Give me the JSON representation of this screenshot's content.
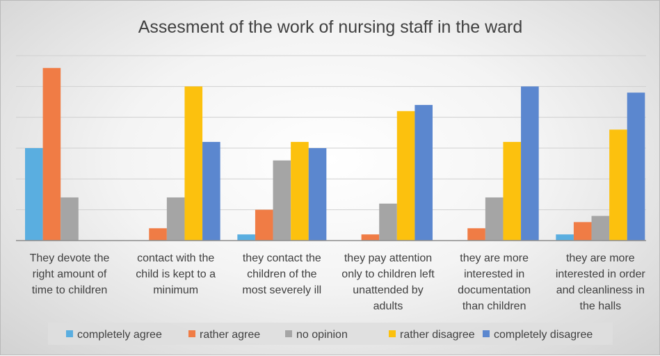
{
  "chart_data": {
    "type": "bar",
    "title": "Assesment of the work of nursing staff in the ward",
    "xlabel": "",
    "ylabel": "",
    "ylim": [
      0,
      30
    ],
    "grid": true,
    "legend_position": "bottom",
    "categories": [
      [
        "They devote the",
        "right amount of",
        "time to children"
      ],
      [
        "contact with the",
        "child is kept to a",
        "minimum"
      ],
      [
        "they contact the",
        "children of the",
        "most severely ill"
      ],
      [
        "they pay attention",
        "only to children left",
        "unattended by",
        "adults"
      ],
      [
        "they are more",
        "interested in",
        "documentation",
        "than children"
      ],
      [
        "they are more",
        "interested in order",
        "and cleanliness in",
        "the halls"
      ]
    ],
    "series": [
      {
        "name": "completely agree",
        "color": "#5aaee0",
        "values": [
          15,
          0,
          1,
          0,
          0,
          1
        ]
      },
      {
        "name": "rather agree",
        "color": "#f07c45",
        "values": [
          28,
          2,
          5,
          1,
          2,
          3
        ]
      },
      {
        "name": "no opinion",
        "color": "#a5a5a5",
        "values": [
          7,
          7,
          13,
          6,
          7,
          4
        ]
      },
      {
        "name": "rather disagree",
        "color": "#fcc10e",
        "values": [
          0,
          25,
          16,
          21,
          16,
          18
        ]
      },
      {
        "name": "completely disagree",
        "color": "#5b87cf",
        "values": [
          0,
          16,
          15,
          22,
          25,
          24
        ]
      }
    ]
  }
}
